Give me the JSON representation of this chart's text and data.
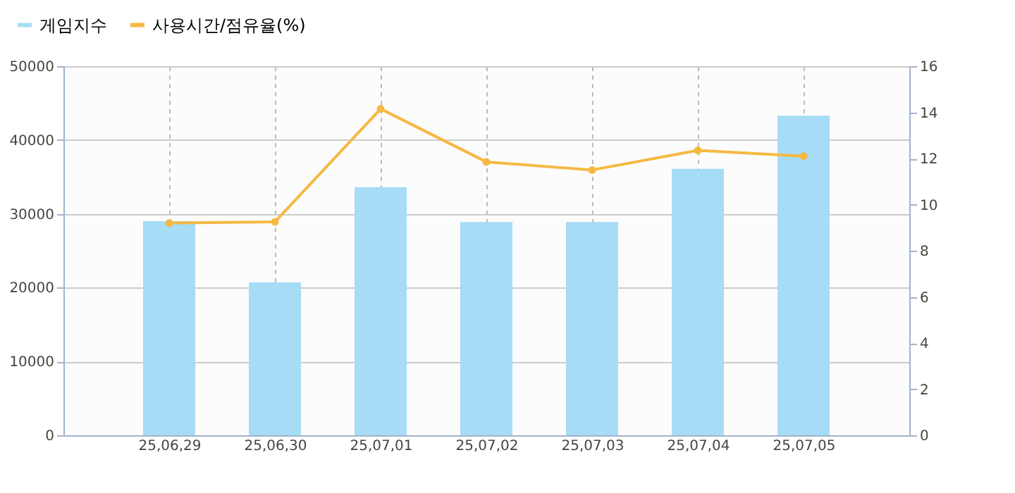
{
  "chart_data": {
    "type": "bar",
    "categories": [
      "25,06,29",
      "25,06,30",
      "25,07,01",
      "25,07,02",
      "25,07,03",
      "25,07,04",
      "25,07,05"
    ],
    "series": [
      {
        "name": "게임지수",
        "color": "#a6dcf5",
        "values": [
          29000,
          20700,
          33600,
          28900,
          28900,
          36100,
          43300
        ]
      },
      {
        "name": "사용시간/점유율(%)",
        "type": "line",
        "axis": "y2",
        "color": "#f5b942",
        "values": [
          9.2,
          9.25,
          14.15,
          11.85,
          11.5,
          12.35,
          12.1
        ]
      }
    ],
    "ylim": [
      0,
      50000
    ],
    "yticks": [
      0,
      10000,
      20000,
      30000,
      40000,
      50000
    ],
    "y2lim": [
      0,
      16
    ],
    "y2ticks": [
      0,
      2,
      4,
      6,
      8,
      10,
      12,
      14,
      16
    ],
    "grid": true,
    "legend": "top left",
    "marker": "circle",
    "line_style": "solid"
  }
}
